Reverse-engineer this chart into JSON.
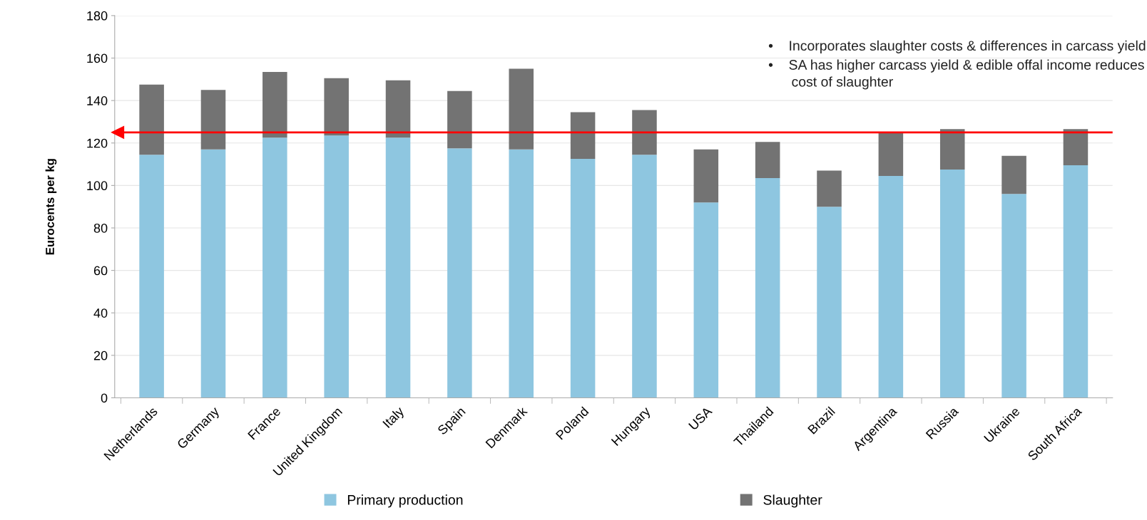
{
  "chart_data": {
    "type": "bar",
    "stacked": true,
    "ylabel": "Eurocents per kg",
    "categories": [
      "Netherlands",
      "Germany",
      "France",
      "United Kingdom",
      "Italy",
      "Spain",
      "Denmark",
      "Poland",
      "Hungary",
      "USA",
      "Thailand",
      "Brazil",
      "Argentina",
      "Russia",
      "Ukraine",
      "South Africa"
    ],
    "series": [
      {
        "name": "Primary production",
        "color": "#8ec6e0",
        "values": [
          114.5,
          117,
          122.5,
          123.5,
          122.5,
          117.5,
          117,
          112.5,
          114.5,
          92,
          103.5,
          90,
          104.5,
          107.5,
          96,
          109.5
        ]
      },
      {
        "name": "Slaughter",
        "color": "#737373",
        "values": [
          33,
          28,
          31,
          27,
          27,
          27,
          38,
          22,
          21,
          25,
          17,
          17,
          20.5,
          19,
          18,
          17
        ]
      }
    ],
    "ylim": [
      0,
      180
    ],
    "yticks": [
      0,
      20,
      40,
      60,
      80,
      100,
      120,
      140,
      160,
      180
    ],
    "grid": "y",
    "legend": "bottom",
    "ref_lines": [
      {
        "axis": "y",
        "value": 125,
        "color": "#ff0000"
      }
    ],
    "annotations": [
      "•    Incorporates slaughter costs & differences in carcass yield",
      "•    SA has higher carcass yield & edible offal income reduces\n      cost of slaughter"
    ]
  }
}
